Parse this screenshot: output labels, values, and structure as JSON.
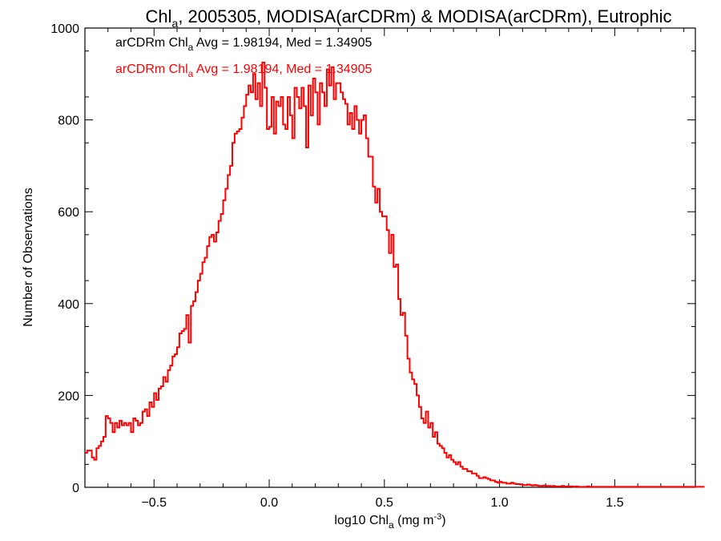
{
  "chart_data": {
    "type": "histogram",
    "title": {
      "prefix": "Chl",
      "sub": "a",
      "rest": ", 2005305, MODISA(arCDRm) & MODISA(arCDRm), Eutrophic"
    },
    "xlabel": {
      "prefix": "log10 Chl",
      "sub": "a",
      "rest": " (mg m",
      "sup": "-3",
      "end": ")"
    },
    "ylabel": "Number of Observations",
    "xlim": [
      -0.8,
      1.85
    ],
    "ylim": [
      0,
      1000
    ],
    "xticks": [
      {
        "value": -0.5,
        "label": "−0.5"
      },
      {
        "value": 0.0,
        "label": "0.0"
      },
      {
        "value": 0.5,
        "label": "0.5"
      },
      {
        "value": 1.0,
        "label": "1.0"
      },
      {
        "value": 1.5,
        "label": "1.5"
      }
    ],
    "yticks": [
      {
        "value": 0,
        "label": "0"
      },
      {
        "value": 200,
        "label": "200"
      },
      {
        "value": 400,
        "label": "400"
      },
      {
        "value": 600,
        "label": "600"
      },
      {
        "value": 800,
        "label": "800"
      },
      {
        "value": 1000,
        "label": "1000"
      }
    ],
    "annotations": [
      {
        "prefix": "arCDRm Chl",
        "sub": "a",
        "rest": " Avg = 1.98194, Med = 1.34905",
        "color": "#000000"
      },
      {
        "prefix": "arCDRm Chl",
        "sub": "a",
        "rest": " Avg = 1.98194, Med = 1.34905",
        "color": "#ff0000"
      }
    ],
    "series": [
      {
        "color": "#ff0000",
        "bin_start": -0.8,
        "bin_width": 0.01,
        "values": [
          75,
          80,
          80,
          65,
          60,
          85,
          90,
          100,
          110,
          155,
          150,
          140,
          120,
          140,
          130,
          145,
          135,
          140,
          135,
          140,
          120,
          150,
          145,
          135,
          140,
          165,
          170,
          155,
          185,
          175,
          205,
          190,
          215,
          220,
          240,
          230,
          255,
          265,
          285,
          290,
          305,
          335,
          340,
          345,
          375,
          315,
          395,
          405,
          425,
          450,
          465,
          490,
          500,
          525,
          545,
          550,
          535,
          555,
          580,
          595,
          625,
          650,
          680,
          700,
          750,
          770,
          775,
          780,
          805,
          830,
          855,
          875,
          860,
          900,
          845,
          880,
          830,
          925,
          870,
          780,
          785,
          850,
          770,
          840,
          830,
          850,
          790,
          780,
          850,
          810,
          760,
          870,
          850,
          825,
          870,
          830,
          740,
          875,
          810,
          890,
          860,
          790,
          880,
          860,
          830,
          910,
          875,
          915,
          845,
          880,
          880,
          860,
          845,
          835,
          790,
          815,
          780,
          830,
          800,
          770,
          800,
          810,
          760,
          720,
          720,
          655,
          620,
          650,
          600,
          590,
          590,
          560,
          510,
          550,
          480,
          485,
          410,
          375,
          380,
          330,
          280,
          250,
          235,
          225,
          200,
          175,
          150,
          140,
          165,
          130,
          140,
          110,
          120,
          95,
          90,
          85,
          75,
          65,
          70,
          60,
          55,
          50,
          55,
          45,
          40,
          40,
          35,
          35,
          30,
          30,
          25,
          20,
          20,
          22,
          20,
          18,
          15,
          15,
          12,
          10,
          12,
          10,
          10,
          8,
          8,
          10,
          8,
          7,
          7,
          6,
          5,
          5,
          6,
          5,
          4,
          5,
          4,
          3,
          3,
          4,
          3,
          3,
          2,
          3,
          2,
          2,
          2,
          3,
          2,
          2,
          2,
          2,
          1,
          2,
          1,
          1,
          1,
          1,
          2,
          1,
          1,
          1,
          1,
          1,
          1,
          1,
          1,
          1,
          1,
          1,
          1,
          1,
          1,
          1,
          1,
          1,
          1,
          1,
          1,
          1,
          1,
          1,
          1,
          1,
          1,
          1,
          1,
          1,
          1,
          1,
          1,
          1,
          1,
          1,
          1,
          1,
          1,
          1,
          1,
          1,
          1,
          1,
          1,
          1,
          1,
          1,
          1,
          1,
          1
        ]
      }
    ]
  }
}
